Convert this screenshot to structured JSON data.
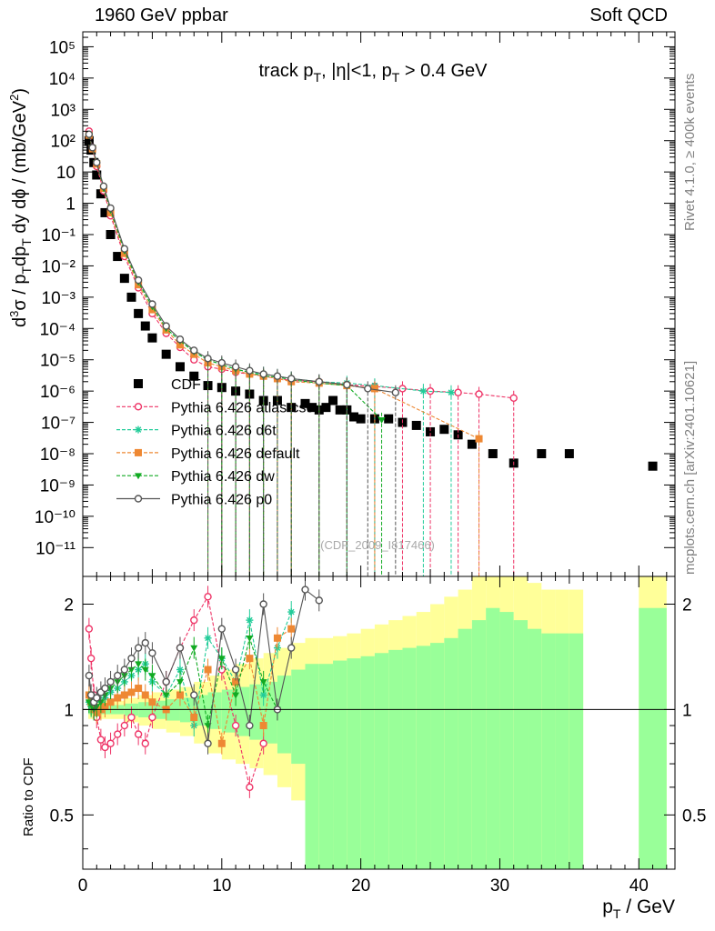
{
  "header": {
    "beam": "1960 GeV ppbar",
    "category": "Soft QCD"
  },
  "side_labels": {
    "rivet": "Rivet 4.1.0, ≥ 400k events",
    "mcplots": "mcplots.cern.ch [arXiv:2401.10621]"
  },
  "watermark": "(CDF_2009_I817466)",
  "colors": {
    "cdf": "#000000",
    "atlas_csc": "#ee3366",
    "d6t": "#22cc99",
    "default": "#ee8833",
    "dw": "#11aa22",
    "p0": "#555555",
    "band_inner": "#99ff99",
    "band_outer": "#ffff99"
  },
  "chart_data": [
    {
      "type": "scatter",
      "title": "track pT, |η|<1, pT > 0.4 GeV",
      "ylabel": "d³σ / pT dpT dy dϕ / (mb/GeV²)",
      "xlabel": "",
      "log_y": true,
      "xlim": [
        0,
        42.6
      ],
      "ylim": [
        1.2e-12,
        300000.0
      ],
      "x_ticks": [
        "0",
        "10",
        "20",
        "30",
        "40"
      ],
      "y_ticks": [
        "10⁻¹¹",
        "10⁻¹⁰",
        "10⁻⁹",
        "10⁻⁸",
        "10⁻⁷",
        "10⁻⁶",
        "10⁻⁵",
        "10⁻⁴",
        "10⁻³",
        "10⁻²",
        "10⁻¹",
        "1",
        "10",
        "10²",
        "10³",
        "10⁴",
        "10⁵"
      ],
      "legend_position": "bottom-left",
      "series": [
        {
          "name": "CDF",
          "marker": "filled-square",
          "x": [
            0.45,
            0.6,
            0.8,
            1.0,
            1.3,
            1.6,
            2.0,
            2.5,
            3.0,
            3.5,
            4.0,
            4.5,
            5.0,
            6.0,
            7.0,
            8.0,
            9.0,
            10.0,
            11.0,
            12.0,
            13.0,
            14.0,
            15.0,
            16.0,
            16.5,
            17.0,
            17.5,
            18.0,
            18.5,
            19.0,
            19.5,
            20.0,
            21.0,
            22.0,
            23.0,
            24.0,
            25.0,
            26.0,
            27.0,
            28.0,
            29.5,
            31.0,
            33.0,
            35.0,
            41.0
          ],
          "y": [
            100,
            50,
            20,
            8,
            2,
            0.5,
            0.1,
            0.02,
            0.004,
            0.001,
            0.0003,
            0.00012,
            5e-05,
            1.5e-05,
            6e-06,
            3e-06,
            1.5e-06,
            1.3e-06,
            1e-06,
            8e-07,
            5e-07,
            5e-07,
            3e-07,
            4e-07,
            3e-07,
            2.5e-07,
            3e-07,
            5e-07,
            2.5e-07,
            2.5e-07,
            1.5e-07,
            1.3e-07,
            1.3e-07,
            1.3e-07,
            1e-07,
            8e-08,
            5e-08,
            6e-08,
            4e-08,
            2e-08,
            1e-08,
            5e-09,
            1e-08,
            1e-08,
            4e-09
          ]
        },
        {
          "name": "Pythia 6.426 atlas-csc",
          "marker": "open-circle",
          "x": [
            0.45,
            0.7,
            1.0,
            1.5,
            2.0,
            3.0,
            4.0,
            5.0,
            6.0,
            7.0,
            8.0,
            9.0,
            10.0,
            11.0,
            12.0,
            13.0,
            14.0,
            15.0,
            17.0,
            19.0,
            21.0,
            23.0,
            25.0,
            27.0,
            28.5,
            31.0
          ],
          "y": [
            200,
            60,
            15,
            2.5,
            0.4,
            0.02,
            0.002,
            0.0003,
            7e-05,
            2.5e-05,
            1e-05,
            6e-06,
            5e-06,
            4e-06,
            3.5e-06,
            3e-06,
            2.5e-06,
            2.2e-06,
            2e-06,
            1.6e-06,
            1.4e-06,
            1.2e-06,
            1e-06,
            9e-07,
            8e-07,
            6e-07
          ]
        },
        {
          "name": "Pythia 6.426 d6t",
          "marker": "star",
          "x": [
            0.45,
            0.7,
            1.0,
            1.5,
            2.0,
            3.0,
            4.0,
            5.0,
            6.0,
            7.0,
            8.0,
            9.0,
            10.0,
            11.0,
            12.0,
            13.0,
            14.0,
            15.0,
            17.0,
            19.0,
            21.0,
            24.5,
            26.5
          ],
          "y": [
            150,
            60,
            20,
            3,
            0.6,
            0.03,
            0.003,
            0.0005,
            0.0001,
            4e-05,
            1.8e-05,
            1e-05,
            7e-06,
            5e-06,
            4e-06,
            3.5e-06,
            3e-06,
            2.5e-06,
            2e-06,
            1.8e-06,
            1.5e-06,
            1e-06,
            9e-07
          ]
        },
        {
          "name": "Pythia 6.426 default",
          "marker": "filled-square",
          "x": [
            0.45,
            0.7,
            1.0,
            1.5,
            2.0,
            3.0,
            4.0,
            5.0,
            6.0,
            7.0,
            8.0,
            9.0,
            10.0,
            11.0,
            12.0,
            13.0,
            14.0,
            15.0,
            17.0,
            19.0,
            21.0,
            28.5
          ],
          "y": [
            150,
            55,
            18,
            3,
            0.5,
            0.025,
            0.0025,
            0.0004,
            9e-05,
            3e-05,
            1.5e-05,
            8e-06,
            6e-06,
            4.5e-06,
            3.5e-06,
            3e-06,
            2.5e-06,
            2e-06,
            1.8e-06,
            1.5e-06,
            1.2e-06,
            3e-08
          ]
        },
        {
          "name": "Pythia 6.426 dw",
          "marker": "filled-triangle-down",
          "x": [
            0.45,
            0.7,
            1.0,
            1.5,
            2.0,
            3.0,
            4.0,
            5.0,
            6.0,
            7.0,
            8.0,
            9.0,
            10.0,
            11.0,
            12.0,
            13.0,
            14.0,
            15.0,
            17.0,
            19.0,
            21.5
          ],
          "y": [
            150,
            60,
            20,
            3,
            0.6,
            0.03,
            0.003,
            0.0005,
            0.0001,
            4e-05,
            1.8e-05,
            1e-05,
            7e-06,
            5e-06,
            4e-06,
            3e-06,
            2.8e-06,
            2.3e-06,
            1.8e-06,
            1.5e-06,
            1.2e-07
          ]
        },
        {
          "name": "Pythia 6.426 p0",
          "marker": "open-circle",
          "x": [
            0.45,
            0.7,
            1.0,
            1.5,
            2.0,
            3.0,
            4.0,
            5.0,
            6.0,
            7.0,
            8.0,
            9.0,
            10.0,
            11.0,
            12.0,
            13.0,
            14.0,
            15.0,
            17.0,
            19.0,
            20.5,
            22.5
          ],
          "y": [
            160,
            60,
            20,
            3.5,
            0.7,
            0.035,
            0.0035,
            0.0006,
            0.00012,
            4.5e-05,
            2e-05,
            1.1e-05,
            8e-06,
            6e-06,
            4.5e-06,
            3.5e-06,
            3e-06,
            2.5e-06,
            2e-06,
            1.6e-06,
            1.2e-06,
            9e-07
          ]
        }
      ]
    },
    {
      "type": "scatter",
      "title": "",
      "ylabel": "Ratio to CDF",
      "xlabel": "pT / GeV",
      "log_y": true,
      "xlim": [
        0,
        42.6
      ],
      "ylim": [
        0.35,
        2.4
      ],
      "x_ticks": [
        "0",
        "10",
        "20",
        "30",
        "40"
      ],
      "y_ticks": [
        "0.5",
        "1",
        "2"
      ],
      "reference_line": 1,
      "bands": {
        "edges": [
          0.4,
          1,
          2,
          3,
          4,
          5,
          6,
          7,
          8,
          9,
          10,
          11,
          12,
          13,
          14,
          15,
          16,
          17,
          18,
          19,
          20,
          21,
          22,
          23,
          24,
          25,
          26,
          27,
          28,
          29,
          30,
          31,
          32,
          33,
          34,
          35,
          36
        ],
        "inner_low": [
          0.97,
          0.97,
          0.97,
          0.96,
          0.95,
          0.94,
          0.93,
          0.92,
          0.9,
          0.88,
          0.86,
          0.84,
          0.82,
          0.8,
          0.75,
          0.7,
          0.35,
          0.35,
          0.35,
          0.35,
          0.35,
          0.35,
          0.35,
          0.35,
          0.35,
          0.35,
          0.35,
          0.35,
          0.35,
          0.35,
          0.35,
          0.35,
          0.35,
          0.35,
          0.35,
          0.35
        ],
        "inner_high": [
          1.03,
          1.03,
          1.03,
          1.04,
          1.05,
          1.06,
          1.07,
          1.08,
          1.1,
          1.12,
          1.14,
          1.16,
          1.18,
          1.2,
          1.25,
          1.3,
          1.35,
          1.35,
          1.38,
          1.4,
          1.42,
          1.45,
          1.48,
          1.5,
          1.52,
          1.55,
          1.6,
          1.7,
          1.8,
          1.95,
          1.9,
          1.8,
          1.7,
          1.65,
          1.65,
          1.65
        ],
        "outer_low": [
          0.94,
          0.94,
          0.94,
          0.92,
          0.9,
          0.88,
          0.86,
          0.84,
          0.8,
          0.75,
          0.72,
          0.7,
          0.68,
          0.65,
          0.6,
          0.55,
          0.35,
          0.35,
          0.35,
          0.35,
          0.35,
          0.35,
          0.35,
          0.35,
          0.35,
          0.35,
          0.35,
          0.35,
          0.35,
          0.35,
          0.35,
          0.35,
          0.35,
          0.35,
          0.35,
          0.35
        ],
        "outer_high": [
          1.06,
          1.06,
          1.06,
          1.08,
          1.1,
          1.12,
          1.14,
          1.16,
          1.2,
          1.25,
          1.3,
          1.35,
          1.4,
          1.45,
          1.5,
          1.55,
          1.6,
          1.6,
          1.62,
          1.65,
          1.7,
          1.75,
          1.8,
          1.85,
          1.9,
          2.0,
          2.1,
          2.2,
          2.4,
          2.4,
          2.4,
          2.4,
          2.3,
          2.2,
          2.2,
          2.2
        ],
        "tail_edges": [
          40,
          42
        ],
        "tail_inner_high": [
          1.95,
          1.95
        ],
        "tail_outer_high": [
          2.4,
          2.4
        ]
      },
      "series": [
        {
          "name": "Pythia 6.426 atlas-csc",
          "x": [
            0.45,
            0.6,
            0.8,
            1.0,
            1.3,
            1.6,
            2.0,
            2.5,
            3.0,
            3.5,
            4.0,
            4.5,
            5.0,
            6.0,
            7.0,
            8.0,
            9.0,
            10.0,
            11.0,
            12.0,
            13.0
          ],
          "y": [
            1.7,
            1.4,
            1.1,
            0.95,
            0.82,
            0.78,
            0.8,
            0.85,
            0.9,
            0.95,
            0.85,
            0.8,
            0.95,
            1.2,
            1.5,
            1.8,
            2.1,
            1.3,
            0.9,
            0.6,
            0.8
          ]
        },
        {
          "name": "Pythia 6.426 d6t",
          "x": [
            0.45,
            0.6,
            0.8,
            1.0,
            1.3,
            1.6,
            2.0,
            2.5,
            3.0,
            3.5,
            4.0,
            4.5,
            5.0,
            6.0,
            7.0,
            8.0,
            9.0,
            10.0,
            11.0,
            12.0,
            13.0,
            14.0,
            15.0
          ],
          "y": [
            1.05,
            1.02,
            1.0,
            1.02,
            1.05,
            1.08,
            1.12,
            1.15,
            1.2,
            1.25,
            1.3,
            1.35,
            1.2,
            1.1,
            1.3,
            0.9,
            1.6,
            1.4,
            1.2,
            1.8,
            1.1,
            1.5,
            1.9
          ]
        },
        {
          "name": "Pythia 6.426 default",
          "x": [
            0.45,
            0.6,
            0.8,
            1.0,
            1.3,
            1.6,
            2.0,
            2.5,
            3.0,
            3.5,
            4.0,
            4.5,
            5.0,
            6.0,
            7.0,
            8.0,
            9.0,
            10.0,
            11.0,
            12.0,
            13.0,
            14.0,
            15.0
          ],
          "y": [
            1.1,
            1.05,
            1.0,
            0.98,
            1.0,
            1.02,
            1.05,
            1.08,
            1.1,
            1.12,
            1.15,
            1.1,
            1.05,
            1.0,
            1.1,
            0.95,
            1.3,
            0.8,
            1.2,
            1.4,
            0.9,
            1.6,
            1.7
          ]
        },
        {
          "name": "Pythia 6.426 dw",
          "x": [
            0.45,
            0.6,
            0.8,
            1.0,
            1.3,
            1.6,
            2.0,
            2.5,
            3.0,
            3.5,
            4.0,
            4.5,
            5.0,
            6.0,
            7.0,
            8.0,
            9.0,
            10.0,
            11.0,
            12.0,
            13.0,
            14.0
          ],
          "y": [
            1.05,
            1.03,
            1.0,
            1.02,
            1.05,
            1.1,
            1.15,
            1.2,
            1.25,
            1.3,
            1.35,
            1.3,
            1.25,
            1.1,
            1.2,
            1.5,
            0.9,
            1.4,
            1.1,
            1.6,
            1.2,
            1.0
          ]
        },
        {
          "name": "Pythia 6.426 p0",
          "x": [
            0.45,
            0.6,
            0.8,
            1.0,
            1.3,
            1.6,
            2.0,
            2.5,
            3.0,
            3.5,
            4.0,
            4.5,
            5.0,
            6.0,
            7.0,
            8.0,
            9.0,
            10.0,
            11.0,
            12.0,
            13.0,
            14.0,
            15.0,
            16.0,
            17.0
          ],
          "y": [
            1.25,
            1.1,
            1.05,
            1.08,
            1.12,
            1.15,
            1.2,
            1.25,
            1.3,
            1.4,
            1.5,
            1.55,
            1.45,
            1.2,
            1.5,
            1.1,
            0.8,
            1.7,
            1.3,
            0.9,
            2.0,
            1.0,
            1.5,
            2.2,
            2.05
          ]
        }
      ]
    }
  ]
}
